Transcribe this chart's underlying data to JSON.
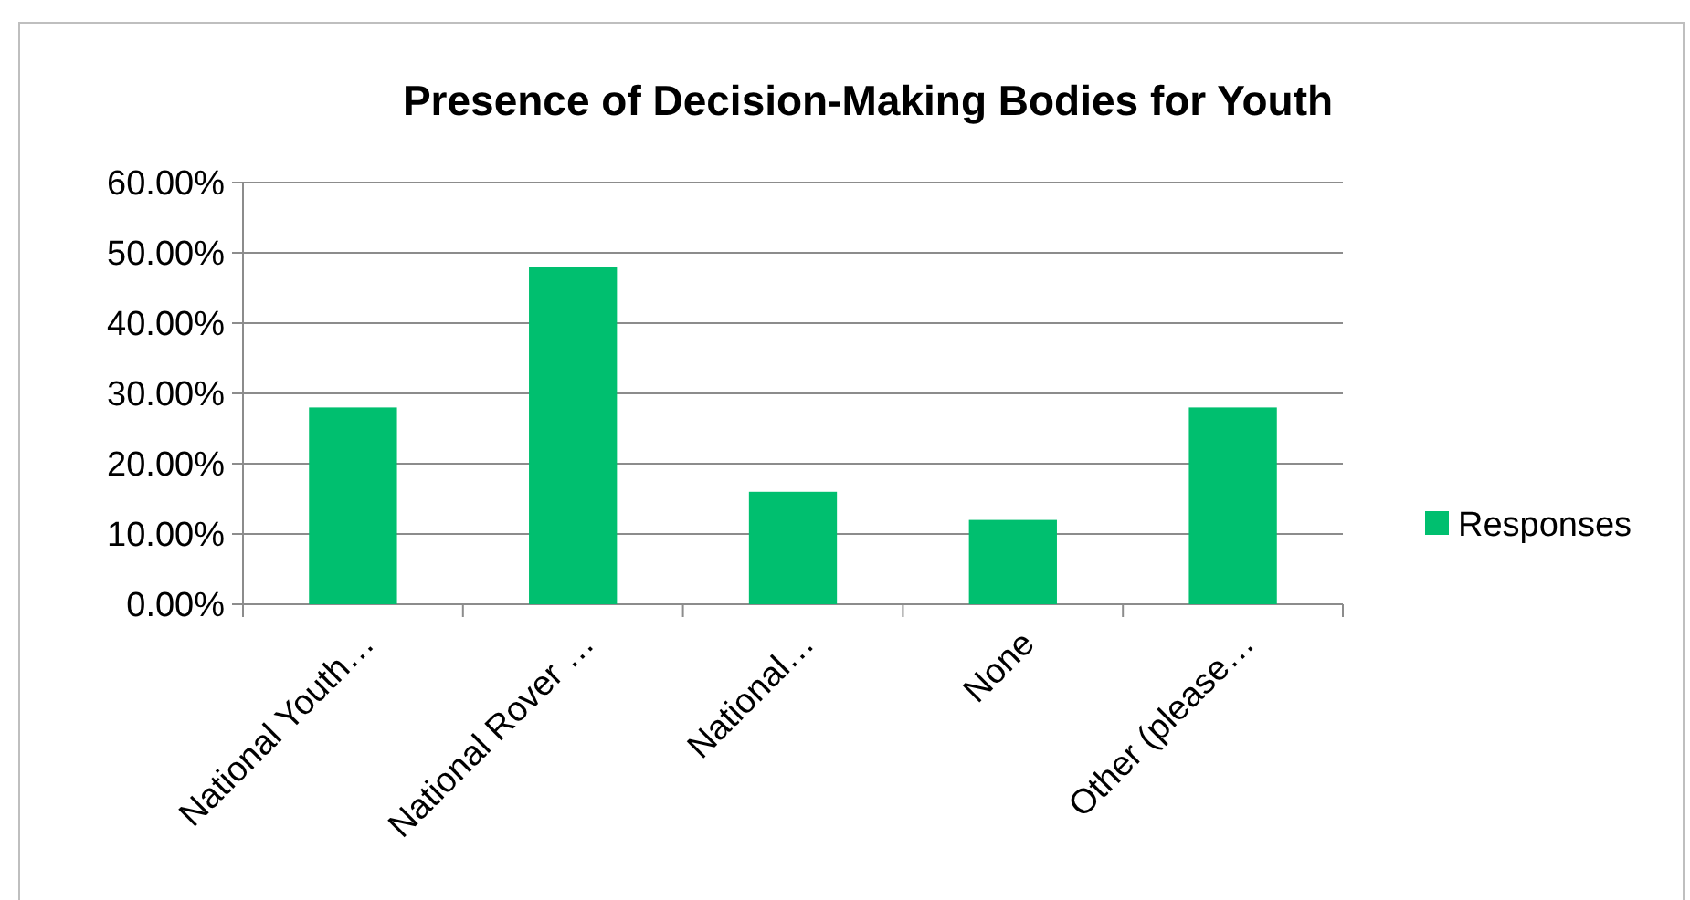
{
  "chart_data": {
    "type": "bar",
    "title": "Presence of Decision-Making Bodies for Youth",
    "categories": [
      "National Youth…",
      "National Rover …",
      "National…",
      "None",
      "Other (please…"
    ],
    "series": [
      {
        "name": "Responses",
        "color": "#00bf6f",
        "values": [
          28,
          48,
          16,
          12,
          28
        ]
      }
    ],
    "ylim": [
      0,
      60
    ],
    "yticks": [
      {
        "value": 0,
        "label": "0.00%"
      },
      {
        "value": 10,
        "label": "10.00%"
      },
      {
        "value": 20,
        "label": "20.00%"
      },
      {
        "value": 30,
        "label": "30.00%"
      },
      {
        "value": 40,
        "label": "40.00%"
      },
      {
        "value": 50,
        "label": "50.00%"
      },
      {
        "value": 60,
        "label": "60.00%"
      }
    ],
    "grid": "y",
    "legend": "right"
  }
}
